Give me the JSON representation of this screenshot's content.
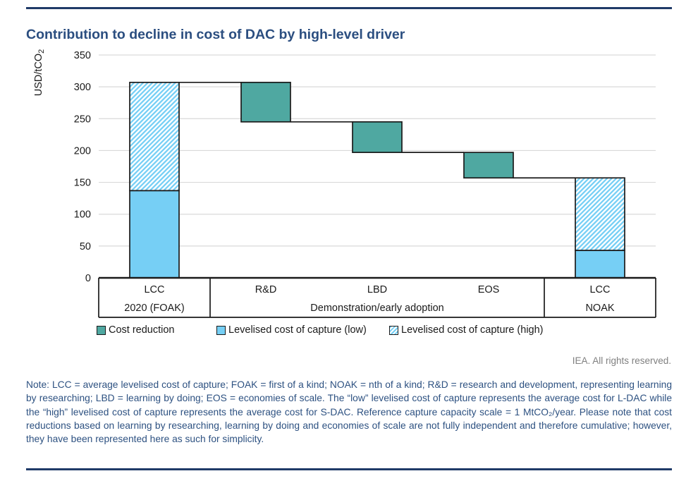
{
  "header": {
    "title": "Contribution to decline in cost of DAC by high-level driver"
  },
  "chart_data": {
    "type": "waterfall",
    "title": "Contribution to decline in cost of DAC by high-level driver",
    "ylabel": "USD/tCO",
    "ylabel_sub": "2",
    "ylim": [
      0,
      350
    ],
    "yticks": [
      0,
      50,
      100,
      150,
      200,
      250,
      300,
      350
    ],
    "grid": true,
    "legend_position": "bottom",
    "categories": [
      "LCC",
      "R&D",
      "LBD",
      "EOS",
      "LCC"
    ],
    "bars": [
      {
        "category": "LCC",
        "segments": [
          {
            "series": "Levelised cost of capture (low)",
            "fill": "blue",
            "from": 0,
            "to": 137
          },
          {
            "series": "Levelised cost of capture (high)",
            "fill": "hatch",
            "from": 137,
            "to": 307
          }
        ]
      },
      {
        "category": "R&D",
        "segments": [
          {
            "series": "Cost reduction",
            "fill": "teal",
            "from": 245,
            "to": 307
          }
        ]
      },
      {
        "category": "LBD",
        "segments": [
          {
            "series": "Cost reduction",
            "fill": "teal",
            "from": 197,
            "to": 245
          }
        ]
      },
      {
        "category": "EOS",
        "segments": [
          {
            "series": "Cost reduction",
            "fill": "teal",
            "from": 157,
            "to": 197
          }
        ]
      },
      {
        "category": "LCC",
        "segments": [
          {
            "series": "Levelised cost of capture (high)",
            "fill": "hatch",
            "from": 43,
            "to": 157
          },
          {
            "series": "Levelised cost of capture (low)",
            "fill": "blue",
            "from": 0,
            "to": 43
          }
        ]
      }
    ],
    "connectors": [
      {
        "between": [
          0,
          1
        ],
        "value": 307
      },
      {
        "between": [
          1,
          2
        ],
        "value": 245
      },
      {
        "between": [
          2,
          3
        ],
        "value": 197
      },
      {
        "between": [
          3,
          4
        ],
        "value": 157
      }
    ],
    "groups": [
      {
        "label": "2020 (FOAK)",
        "span": [
          0,
          0
        ]
      },
      {
        "label": "Demonstration/early adoption",
        "span": [
          1,
          3
        ]
      },
      {
        "label": "NOAK",
        "span": [
          4,
          4
        ]
      }
    ],
    "legend": [
      {
        "label": "Cost reduction",
        "fill": "teal"
      },
      {
        "label": "Levelised cost of capture (low)",
        "fill": "blue"
      },
      {
        "label": "Levelised cost of capture (high)",
        "fill": "hatch"
      }
    ],
    "colors": {
      "teal": "#4FA8A1",
      "blue": "#76CFF5",
      "hatch_stripe": "#76CFF5",
      "hatch_bg": "#FFFFFF",
      "grid": "#D9D9D9",
      "axis": "#1A1A1A",
      "rule": "#1F3A68",
      "title": "#2B4E80",
      "note": "#2D5181",
      "credit": "#808080"
    }
  },
  "footer": {
    "credit": "IEA. All rights reserved.",
    "note": "Note: LCC = average levelised cost of capture; FOAK = first of a kind; NOAK = nth of a kind; R&D = research and development, representing learning by researching; LBD = learning by doing; EOS = economies of scale. The “low” levelised cost of capture represents the average cost for L-DAC while the “high” levelised cost of capture represents the average cost for S-DAC. Reference capture capacity scale = 1 MtCO₂/year. Please note that cost reductions based on learning by researching, learning by doing and economies of scale are not fully independent and therefore cumulative; however, they have been represented here as such for simplicity."
  }
}
